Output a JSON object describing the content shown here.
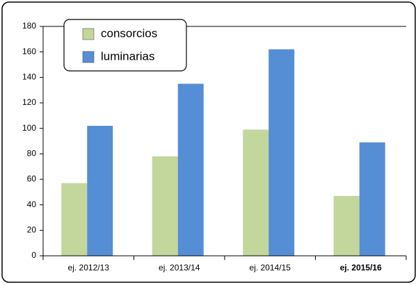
{
  "chart_data": {
    "type": "bar",
    "categories": [
      "ej. 2012/13",
      "ej. 2013/14",
      "ej. 2014/15",
      "ej. 2015/16"
    ],
    "series": [
      {
        "name": "consorcios",
        "color": "#c3d69b",
        "values": [
          57,
          78,
          99,
          47
        ]
      },
      {
        "name": "luminarias",
        "color": "#558ed5",
        "values": [
          102,
          135,
          162,
          89
        ]
      }
    ],
    "ylim": [
      0,
      180
    ],
    "yticks": [
      0,
      20,
      40,
      60,
      80,
      100,
      120,
      140,
      160,
      180
    ],
    "grid": false,
    "legend": "top-left",
    "bold_category": 3
  }
}
